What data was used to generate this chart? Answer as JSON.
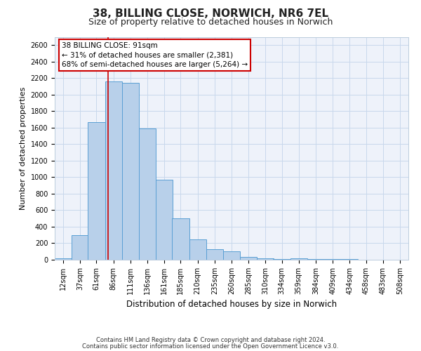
{
  "title": "38, BILLING CLOSE, NORWICH, NR6 7EL",
  "subtitle": "Size of property relative to detached houses in Norwich",
  "xlabel": "Distribution of detached houses by size in Norwich",
  "ylabel": "Number of detached properties",
  "footer_line1": "Contains HM Land Registry data © Crown copyright and database right 2024.",
  "footer_line2": "Contains public sector information licensed under the Open Government Licence v3.0.",
  "bin_labels": [
    "12sqm",
    "37sqm",
    "61sqm",
    "86sqm",
    "111sqm",
    "136sqm",
    "161sqm",
    "185sqm",
    "210sqm",
    "235sqm",
    "260sqm",
    "285sqm",
    "310sqm",
    "334sqm",
    "359sqm",
    "384sqm",
    "409sqm",
    "434sqm",
    "458sqm",
    "483sqm",
    "508sqm"
  ],
  "bin_starts": [
    12,
    37,
    61,
    86,
    111,
    136,
    161,
    185,
    210,
    235,
    260,
    285,
    310,
    334,
    359,
    384,
    409,
    434,
    458,
    483,
    508
  ],
  "bin_width": 25,
  "bar_values": [
    20,
    300,
    1670,
    2160,
    2140,
    1590,
    970,
    500,
    245,
    130,
    100,
    35,
    20,
    10,
    20,
    10,
    5,
    5,
    2,
    2,
    1
  ],
  "bar_color": "#b8d0ea",
  "bar_edge_color": "#5a9fd4",
  "grid_color": "#c8d8ec",
  "background_color": "#eef2fa",
  "annotation_text": "38 BILLING CLOSE: 91sqm\n← 31% of detached houses are smaller (2,381)\n68% of semi-detached houses are larger (5,264) →",
  "vline_x": 91,
  "vline_color": "#cc0000",
  "ylim_max": 2700,
  "yticks": [
    0,
    200,
    400,
    600,
    800,
    1000,
    1200,
    1400,
    1600,
    1800,
    2000,
    2200,
    2400,
    2600
  ],
  "annotation_box_facecolor": "#ffffff",
  "annotation_box_edgecolor": "#cc0000",
  "title_fontsize": 11,
  "subtitle_fontsize": 9,
  "xlabel_fontsize": 8.5,
  "ylabel_fontsize": 8,
  "tick_fontsize": 7,
  "annotation_fontsize": 7.5,
  "footer_fontsize": 6
}
